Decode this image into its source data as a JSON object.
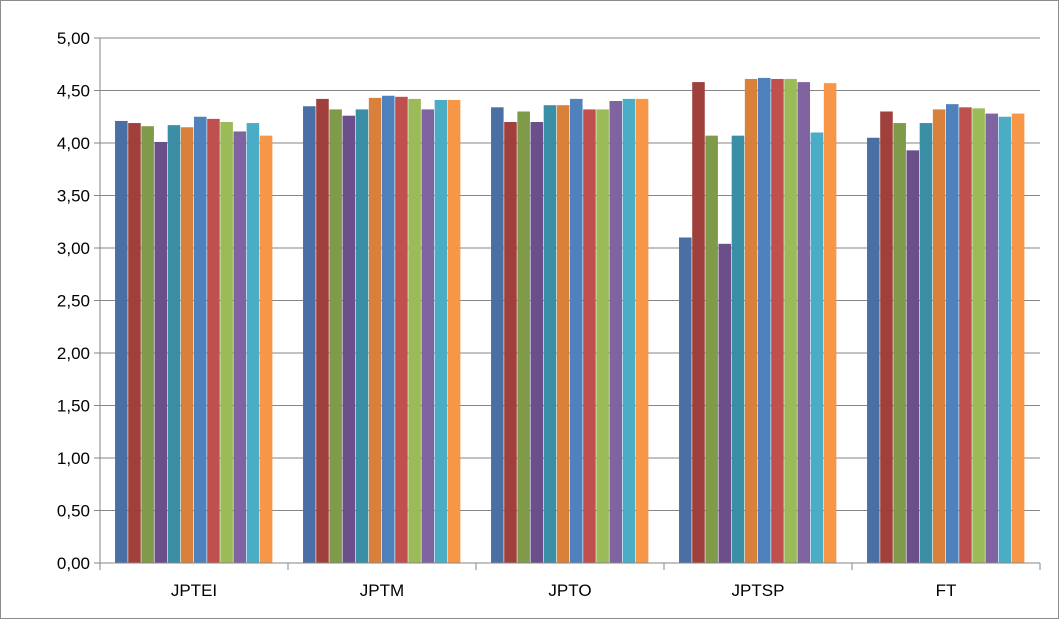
{
  "chart_data": {
    "type": "bar",
    "title": "",
    "xlabel": "",
    "ylabel": "",
    "ylim": [
      0,
      5
    ],
    "y_ticks": [
      "0,00",
      "0,50",
      "1,00",
      "1,50",
      "2,00",
      "2,50",
      "3,00",
      "3,50",
      "4,00",
      "4,50",
      "5,00"
    ],
    "grid": "horizontal",
    "legend": "none",
    "categories": [
      "JPTEI",
      "JPTM",
      "JPTO",
      "JPTSP",
      "FT"
    ],
    "series": [
      {
        "color": "#4A6FA5",
        "values": [
          4.21,
          4.35,
          4.34,
          3.1,
          4.05
        ]
      },
      {
        "color": "#A0403C",
        "values": [
          4.19,
          4.42,
          4.2,
          4.58,
          4.3
        ]
      },
      {
        "color": "#7F9A48",
        "values": [
          4.16,
          4.32,
          4.3,
          4.07,
          4.19
        ]
      },
      {
        "color": "#6A4F8A",
        "values": [
          4.01,
          4.26,
          4.2,
          3.04,
          3.93
        ]
      },
      {
        "color": "#3A8FA6",
        "values": [
          4.17,
          4.32,
          4.36,
          4.07,
          4.19
        ]
      },
      {
        "color": "#D9803A",
        "values": [
          4.15,
          4.43,
          4.36,
          4.61,
          4.32
        ]
      },
      {
        "color": "#4F81BD",
        "values": [
          4.25,
          4.45,
          4.42,
          4.62,
          4.37
        ]
      },
      {
        "color": "#C0504D",
        "values": [
          4.23,
          4.44,
          4.32,
          4.61,
          4.34
        ]
      },
      {
        "color": "#9BBB59",
        "values": [
          4.2,
          4.42,
          4.32,
          4.61,
          4.33
        ]
      },
      {
        "color": "#8064A2",
        "values": [
          4.11,
          4.32,
          4.4,
          4.58,
          4.28
        ]
      },
      {
        "color": "#4BACC6",
        "values": [
          4.19,
          4.41,
          4.42,
          4.1,
          4.25
        ]
      },
      {
        "color": "#F79646",
        "values": [
          4.07,
          4.41,
          4.42,
          4.57,
          4.28
        ]
      }
    ]
  }
}
